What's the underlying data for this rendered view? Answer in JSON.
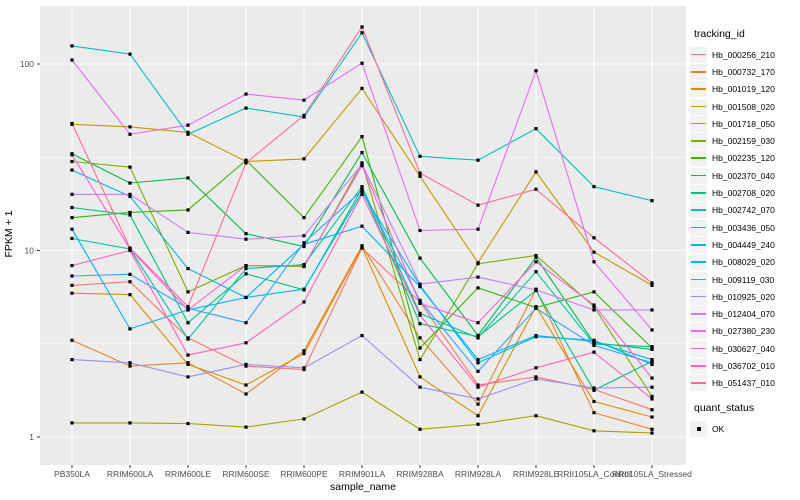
{
  "chart_data": {
    "type": "line",
    "title": "",
    "xlabel": "sample_name",
    "ylabel": "FPKM + 1",
    "y_scale": "log10",
    "y_ticks": [
      1,
      10,
      100
    ],
    "y_tick_labels": [
      "1",
      "10",
      "100"
    ],
    "y_minor_ticks": [
      3.162,
      31.62
    ],
    "ylim_log": [
      0.85,
      230
    ],
    "panel_background": "#EBEBEB",
    "gridline_color": "#FFFFFF",
    "tick_text_color": "#4D4D4D",
    "point_color": "#000000",
    "point_shape": "square",
    "categories": [
      "PB350LA",
      "RRIM600LA",
      "RRIM600LE",
      "RRIM600SE",
      "RRIM600PE",
      "RRIM901LA",
      "RRIM928BA",
      "RRIM928LA",
      "RRIM928LE",
      "RRII105LA_Control",
      "RRII105LA_Stressed"
    ],
    "series": [
      {
        "name": "Hb_000256_210",
        "color": "#F8766D",
        "values": [
          6.5,
          6.8,
          3.4,
          2.4,
          2.3,
          10.3,
          5.3,
          1.9,
          2.1,
          1.8,
          1.4
        ]
      },
      {
        "name": "Hb_000732_170",
        "color": "#EA8331",
        "values": [
          3.3,
          2.4,
          2.5,
          1.7,
          2.9,
          10.6,
          3.4,
          1.5,
          6.2,
          1.35,
          1.1
        ]
      },
      {
        "name": "Hb_001019_120",
        "color": "#D89000",
        "values": [
          5.9,
          5.8,
          2.45,
          1.9,
          2.8,
          10.4,
          2.1,
          1.3,
          5.0,
          1.55,
          1.28
        ]
      },
      {
        "name": "Hb_001508_020",
        "color": "#C09B00",
        "values": [
          47.5,
          46,
          43,
          30,
          31,
          74,
          25,
          8.6,
          26.4,
          9.8,
          6.5
        ]
      },
      {
        "name": "Hb_001718_050",
        "color": "#A3A500",
        "values": [
          1.19,
          1.19,
          1.18,
          1.13,
          1.25,
          1.74,
          1.1,
          1.17,
          1.3,
          1.08,
          1.05
        ]
      },
      {
        "name": "Hb_002159_030",
        "color": "#7CAE00",
        "values": [
          30,
          28,
          6.0,
          8.3,
          8.2,
          29.5,
          2.6,
          8.5,
          9.4,
          5.0,
          1.65
        ]
      },
      {
        "name": "Hb_002235_120",
        "color": "#39B600",
        "values": [
          15,
          16,
          16.5,
          30.5,
          15,
          40.8,
          3.0,
          6.3,
          4.95,
          6.0,
          3.0
        ]
      },
      {
        "name": "Hb_002370_040",
        "color": "#00BB4E",
        "values": [
          33,
          23,
          24.5,
          12.3,
          10.5,
          33.5,
          9.1,
          3.5,
          9.2,
          3.2,
          2.95
        ]
      },
      {
        "name": "Hb_002708_020",
        "color": "#00BF7D",
        "values": [
          17,
          15.5,
          4.1,
          7.5,
          6.15,
          21.5,
          4.05,
          3.45,
          6.1,
          1.78,
          2.55
        ]
      },
      {
        "name": "Hb_002742_070",
        "color": "#00C1A3",
        "values": [
          11.6,
          10.2,
          3.35,
          8.0,
          8.4,
          22,
          4.6,
          3.4,
          7.7,
          3.15,
          3.05
        ]
      },
      {
        "name": "Hb_003436_050",
        "color": "#00BFC4",
        "values": [
          125,
          113,
          42,
          58,
          52,
          147,
          32,
          30.5,
          45,
          22,
          18.5
        ]
      },
      {
        "name": "Hb_004449_240",
        "color": "#00BAE0",
        "values": [
          27,
          19.5,
          8.0,
          5.6,
          6.2,
          20.5,
          6.5,
          2.5,
          3.45,
          3.3,
          2.45
        ]
      },
      {
        "name": "Hb_008029_020",
        "color": "#00B0F6",
        "values": [
          13,
          3.8,
          4.8,
          5.6,
          10.8,
          13.5,
          6.4,
          2.6,
          3.5,
          3.25,
          2.6
        ]
      },
      {
        "name": "Hb_009119_030",
        "color": "#35A2FF",
        "values": [
          7.3,
          7.45,
          4.9,
          4.1,
          11,
          21,
          5.4,
          2.25,
          4.9,
          3.1,
          2.5
        ]
      },
      {
        "name": "Hb_010925_020",
        "color": "#9590FF",
        "values": [
          2.6,
          2.5,
          2.1,
          2.45,
          2.35,
          3.5,
          1.85,
          1.6,
          2.05,
          1.83,
          1.85
        ]
      },
      {
        "name": "Hb_012404_070",
        "color": "#C77CFF",
        "values": [
          20,
          20,
          12.5,
          11.5,
          12,
          29,
          6.6,
          7.2,
          6.15,
          4.8,
          4.8
        ]
      },
      {
        "name": "Hb_027380_230",
        "color": "#E76BF3",
        "values": [
          105,
          42,
          47,
          69,
          64,
          101,
          12.8,
          13,
          92,
          8.7,
          3.75
        ]
      },
      {
        "name": "Hb_030627_040",
        "color": "#FA62DB",
        "values": [
          32.6,
          10.2,
          4.8,
          8.3,
          8.3,
          28.5,
          5.2,
          4.1,
          8.7,
          5.1,
          2.07
        ]
      },
      {
        "name": "Hb_036702_010",
        "color": "#FF62BC",
        "values": [
          8.3,
          10,
          2.75,
          3.2,
          5.3,
          20,
          4.5,
          1.85,
          2.35,
          2.85,
          1.6
        ]
      },
      {
        "name": "Hb_051437_010",
        "color": "#FF6A98",
        "values": [
          48,
          10.3,
          5.0,
          29.5,
          53,
          158,
          26,
          17.5,
          21.3,
          11.7,
          6.7
        ]
      }
    ],
    "legend_position": "right",
    "grid": true
  },
  "legend": {
    "tracking_title": "tracking_id",
    "quant_title": "quant_status",
    "quant_value": "OK"
  }
}
